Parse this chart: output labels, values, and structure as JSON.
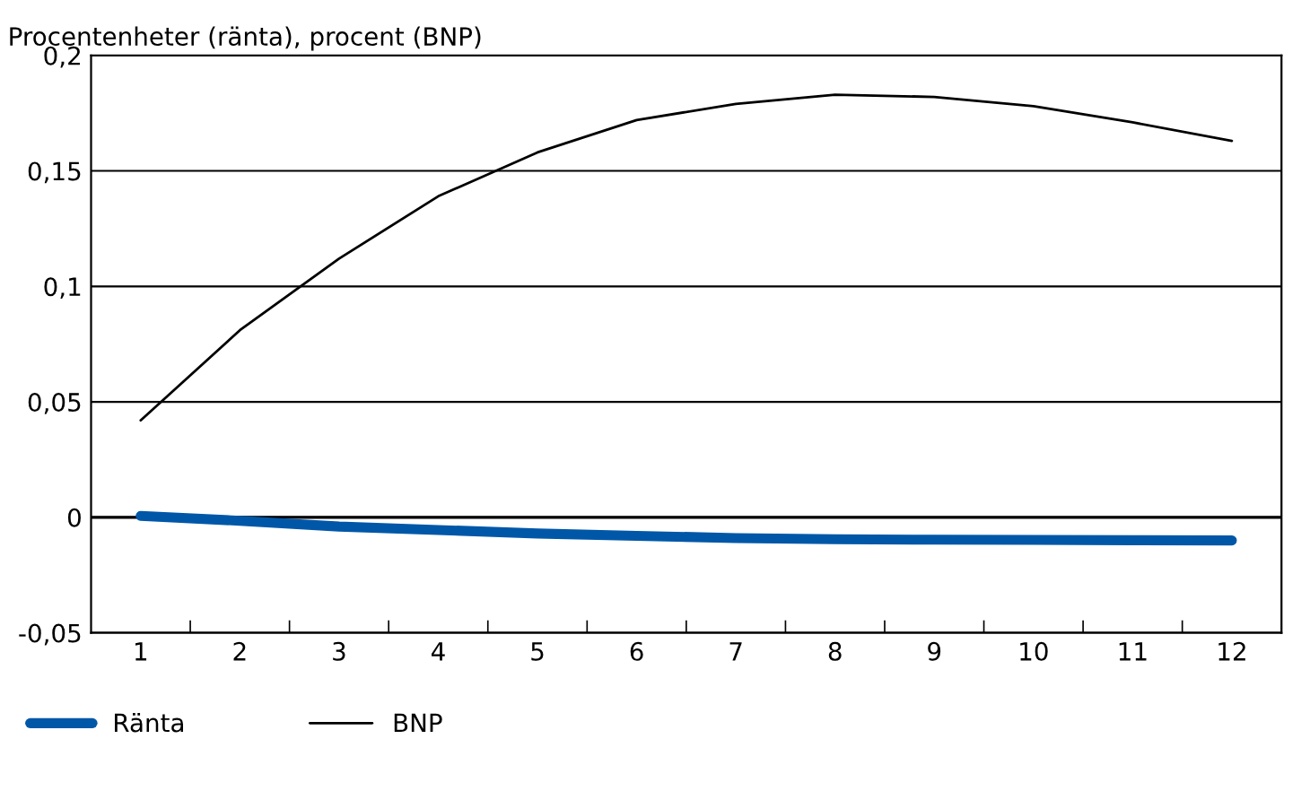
{
  "chart_data": {
    "type": "line",
    "title": "Procentenheter (ränta), procent (BNP)",
    "categories": [
      "1",
      "2",
      "3",
      "4",
      "5",
      "6",
      "7",
      "8",
      "9",
      "10",
      "11",
      "12"
    ],
    "series": [
      {
        "name": "Ränta",
        "color": "#0057a8",
        "values": [
          0.0006,
          -0.0015,
          -0.004,
          -0.0055,
          -0.007,
          -0.008,
          -0.009,
          -0.0095,
          -0.0097,
          -0.0098,
          -0.0099,
          -0.01
        ]
      },
      {
        "name": "BNP",
        "color": "#000000",
        "values": [
          0.042,
          0.081,
          0.112,
          0.139,
          0.158,
          0.172,
          0.179,
          0.183,
          0.182,
          0.178,
          0.171,
          0.163
        ]
      }
    ],
    "ylim": [
      -0.05,
      0.2
    ],
    "yticks": [
      {
        "value": -0.05,
        "label": "-0,05"
      },
      {
        "value": 0,
        "label": "0"
      },
      {
        "value": 0.05,
        "label": "0,05"
      },
      {
        "value": 0.1,
        "label": "0,1"
      },
      {
        "value": 0.15,
        "label": "0,15"
      },
      {
        "value": 0.2,
        "label": "0,2"
      }
    ],
    "grid": "y",
    "legend": "bottom"
  }
}
